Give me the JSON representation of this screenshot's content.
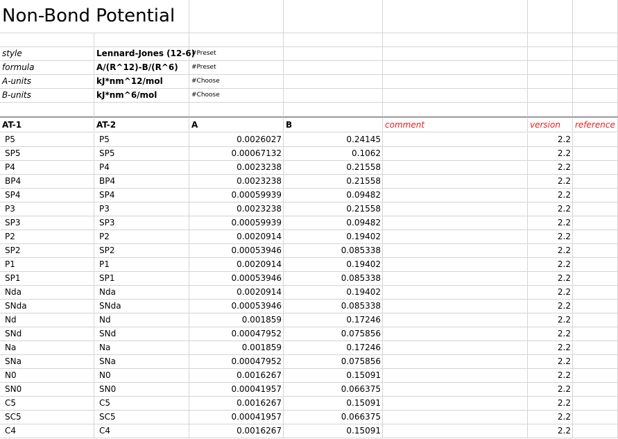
{
  "title": "Non-Bond Potential",
  "meta": [
    {
      "label": "style",
      "value": "Lennard-Jones (12-6)",
      "note": "#Preset"
    },
    {
      "label": "formula",
      "value": "A/(R^12)-B/(R^6)",
      "note": "#Preset"
    },
    {
      "label": "A-units",
      "value": "kJ*nm^12/mol",
      "note": "#Choose"
    },
    {
      "label": "B-units",
      "value": "kJ*nm^6/mol",
      "note": "#Choose"
    }
  ],
  "columns": [
    "AT-1",
    "AT-2",
    "A",
    "B",
    "comment",
    "version",
    "reference"
  ],
  "rows": [
    [
      "P5",
      "P5",
      "0.0026027",
      "0.24145",
      "",
      "2.2",
      ""
    ],
    [
      "SP5",
      "SP5",
      "0.00067132",
      "0.1062",
      "",
      "2.2",
      ""
    ],
    [
      "P4",
      "P4",
      "0.0023238",
      "0.21558",
      "",
      "2.2",
      ""
    ],
    [
      "BP4",
      "BP4",
      "0.0023238",
      "0.21558",
      "",
      "2.2",
      ""
    ],
    [
      "SP4",
      "SP4",
      "0.00059939",
      "0.09482",
      "",
      "2.2",
      ""
    ],
    [
      "P3",
      "P3",
      "0.0023238",
      "0.21558",
      "",
      "2.2",
      ""
    ],
    [
      "SP3",
      "SP3",
      "0.00059939",
      "0.09482",
      "",
      "2.2",
      ""
    ],
    [
      "P2",
      "P2",
      "0.0020914",
      "0.19402",
      "",
      "2.2",
      ""
    ],
    [
      "SP2",
      "SP2",
      "0.00053946",
      "0.085338",
      "",
      "2.2",
      ""
    ],
    [
      "P1",
      "P1",
      "0.0020914",
      "0.19402",
      "",
      "2.2",
      ""
    ],
    [
      "SP1",
      "SP1",
      "0.00053946",
      "0.085338",
      "",
      "2.2",
      ""
    ],
    [
      "Nda",
      "Nda",
      "0.0020914",
      "0.19402",
      "",
      "2.2",
      ""
    ],
    [
      "SNda",
      "SNda",
      "0.00053946",
      "0.085338",
      "",
      "2.2",
      ""
    ],
    [
      "Nd",
      "Nd",
      "0.001859",
      "0.17246",
      "",
      "2.2",
      ""
    ],
    [
      "SNd",
      "SNd",
      "0.00047952",
      "0.075856",
      "",
      "2.2",
      ""
    ],
    [
      "Na",
      "Na",
      "0.001859",
      "0.17246",
      "",
      "2.2",
      ""
    ],
    [
      "SNa",
      "SNa",
      "0.00047952",
      "0.075856",
      "",
      "2.2",
      ""
    ],
    [
      "N0",
      "N0",
      "0.0016267",
      "0.15091",
      "",
      "2.2",
      ""
    ],
    [
      "SN0",
      "SN0",
      "0.00041957",
      "0.066375",
      "",
      "2.2",
      ""
    ],
    [
      "C5",
      "C5",
      "0.0016267",
      "0.15091",
      "",
      "2.2",
      ""
    ],
    [
      "SC5",
      "SC5",
      "0.00041957",
      "0.066375",
      "",
      "2.2",
      ""
    ],
    [
      "C4",
      "C4",
      "0.0016267",
      "0.15091",
      "",
      "2.2",
      ""
    ]
  ],
  "colors": {
    "header_red": "#e02020",
    "grid": "#d4d4d4"
  }
}
